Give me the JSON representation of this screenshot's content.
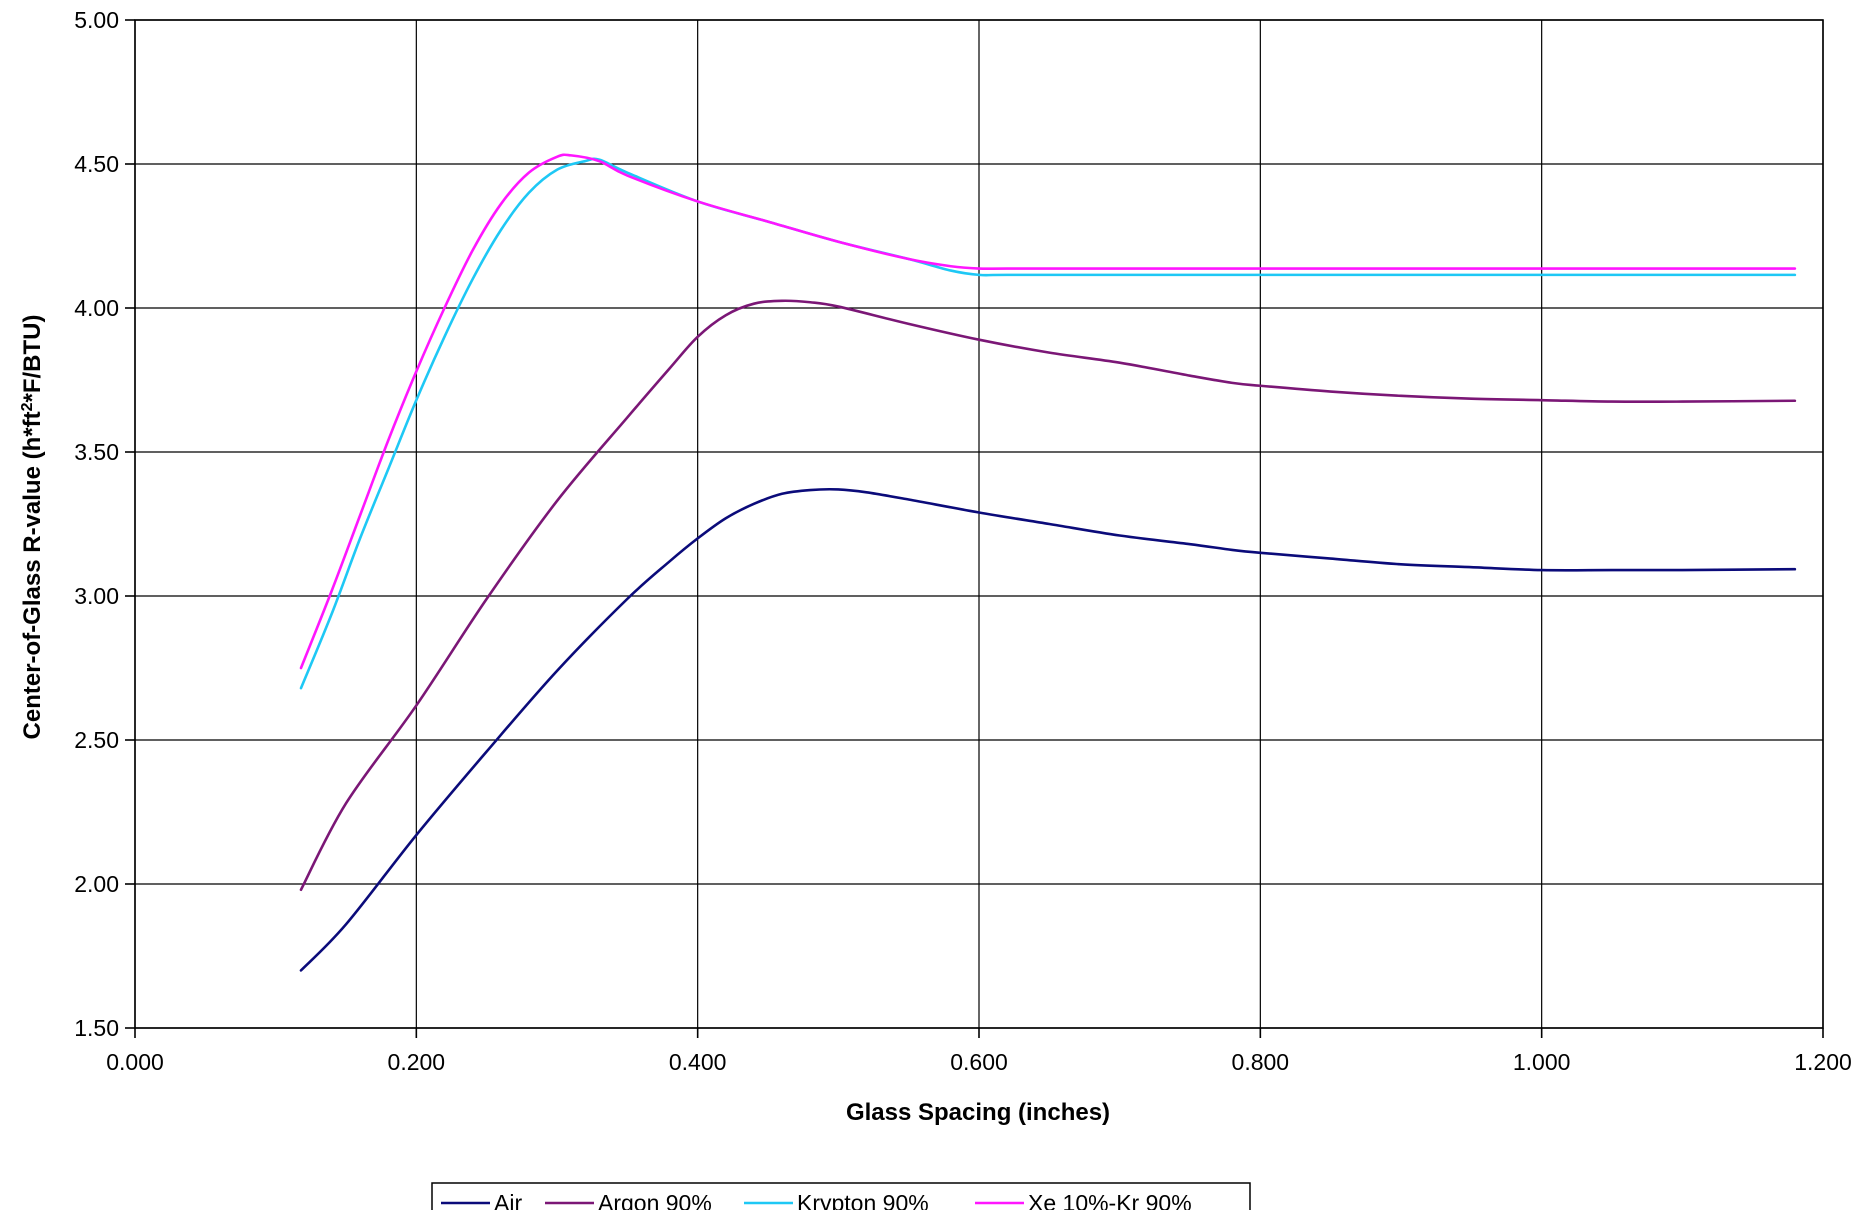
{
  "chart_data": {
    "type": "line",
    "title": "",
    "xlabel": "Glass Spacing (inches)",
    "ylabel_parts": {
      "before": "Center-of-Glass R-value (h*ft",
      "sup": "2",
      "after": "*F/BTU)"
    },
    "xlim": [
      0.0,
      1.2
    ],
    "ylim": [
      1.5,
      5.0
    ],
    "xticks": [
      0.0,
      0.2,
      0.4,
      0.6,
      0.8,
      1.0,
      1.2
    ],
    "yticks": [
      1.5,
      2.0,
      2.5,
      3.0,
      3.5,
      4.0,
      4.5,
      5.0
    ],
    "xtick_labels": [
      "0.000",
      "0.200",
      "0.400",
      "0.600",
      "0.800",
      "1.000",
      "1.200"
    ],
    "ytick_labels": [
      "1.50",
      "2.00",
      "2.50",
      "3.00",
      "3.50",
      "4.00",
      "4.50",
      "5.00"
    ],
    "grid": true,
    "legend_position": "bottom-center",
    "series": [
      {
        "name": "Air",
        "color": "#0b0b7a",
        "points": [
          [
            0.118,
            1.7
          ],
          [
            0.15,
            1.86
          ],
          [
            0.2,
            2.17
          ],
          [
            0.25,
            2.46
          ],
          [
            0.3,
            2.74
          ],
          [
            0.35,
            2.99
          ],
          [
            0.38,
            3.12
          ],
          [
            0.4,
            3.2
          ],
          [
            0.42,
            3.27
          ],
          [
            0.44,
            3.32
          ],
          [
            0.46,
            3.355
          ],
          [
            0.48,
            3.368
          ],
          [
            0.5,
            3.37
          ],
          [
            0.52,
            3.36
          ],
          [
            0.55,
            3.335
          ],
          [
            0.6,
            3.29
          ],
          [
            0.65,
            3.25
          ],
          [
            0.7,
            3.21
          ],
          [
            0.75,
            3.18
          ],
          [
            0.78,
            3.16
          ],
          [
            0.8,
            3.15
          ],
          [
            0.85,
            3.13
          ],
          [
            0.9,
            3.11
          ],
          [
            0.95,
            3.1
          ],
          [
            1.0,
            3.09
          ],
          [
            1.05,
            3.09
          ],
          [
            1.1,
            3.09
          ],
          [
            1.18,
            3.093
          ]
        ]
      },
      {
        "name": "Argon 90%",
        "color": "#7b1776",
        "points": [
          [
            0.118,
            1.98
          ],
          [
            0.15,
            2.28
          ],
          [
            0.2,
            2.62
          ],
          [
            0.25,
            2.99
          ],
          [
            0.3,
            3.33
          ],
          [
            0.35,
            3.62
          ],
          [
            0.38,
            3.79
          ],
          [
            0.4,
            3.9
          ],
          [
            0.42,
            3.975
          ],
          [
            0.44,
            4.015
          ],
          [
            0.46,
            4.025
          ],
          [
            0.48,
            4.02
          ],
          [
            0.5,
            4.005
          ],
          [
            0.55,
            3.945
          ],
          [
            0.6,
            3.89
          ],
          [
            0.65,
            3.845
          ],
          [
            0.7,
            3.81
          ],
          [
            0.75,
            3.765
          ],
          [
            0.78,
            3.74
          ],
          [
            0.8,
            3.73
          ],
          [
            0.85,
            3.71
          ],
          [
            0.9,
            3.695
          ],
          [
            0.95,
            3.685
          ],
          [
            1.0,
            3.68
          ],
          [
            1.05,
            3.675
          ],
          [
            1.1,
            3.675
          ],
          [
            1.18,
            3.678
          ]
        ]
      },
      {
        "name": "Krypton 90%",
        "color": "#1ec8f5",
        "points": [
          [
            0.118,
            2.68
          ],
          [
            0.14,
            2.94
          ],
          [
            0.16,
            3.2
          ],
          [
            0.18,
            3.44
          ],
          [
            0.2,
            3.68
          ],
          [
            0.22,
            3.9
          ],
          [
            0.24,
            4.1
          ],
          [
            0.26,
            4.27
          ],
          [
            0.28,
            4.4
          ],
          [
            0.3,
            4.48
          ],
          [
            0.32,
            4.51
          ],
          [
            0.33,
            4.515
          ],
          [
            0.35,
            4.47
          ],
          [
            0.4,
            4.37
          ],
          [
            0.45,
            4.3
          ],
          [
            0.5,
            4.23
          ],
          [
            0.55,
            4.17
          ],
          [
            0.58,
            4.13
          ],
          [
            0.6,
            4.115
          ],
          [
            0.62,
            4.115
          ],
          [
            0.7,
            4.115
          ],
          [
            0.8,
            4.115
          ],
          [
            0.9,
            4.115
          ],
          [
            1.0,
            4.115
          ],
          [
            1.1,
            4.115
          ],
          [
            1.18,
            4.115
          ]
        ]
      },
      {
        "name": "Xe 10%-Kr 90%",
        "color": "#ff16ff",
        "points": [
          [
            0.118,
            2.75
          ],
          [
            0.14,
            3.02
          ],
          [
            0.16,
            3.28
          ],
          [
            0.18,
            3.54
          ],
          [
            0.2,
            3.78
          ],
          [
            0.22,
            4.0
          ],
          [
            0.24,
            4.2
          ],
          [
            0.26,
            4.36
          ],
          [
            0.28,
            4.47
          ],
          [
            0.3,
            4.525
          ],
          [
            0.31,
            4.53
          ],
          [
            0.33,
            4.51
          ],
          [
            0.35,
            4.46
          ],
          [
            0.4,
            4.37
          ],
          [
            0.45,
            4.3
          ],
          [
            0.5,
            4.23
          ],
          [
            0.55,
            4.17
          ],
          [
            0.58,
            4.145
          ],
          [
            0.6,
            4.137
          ],
          [
            0.62,
            4.137
          ],
          [
            0.7,
            4.137
          ],
          [
            0.8,
            4.137
          ],
          [
            0.9,
            4.137
          ],
          [
            1.0,
            4.137
          ],
          [
            1.1,
            4.137
          ],
          [
            1.18,
            4.137
          ]
        ]
      }
    ]
  }
}
